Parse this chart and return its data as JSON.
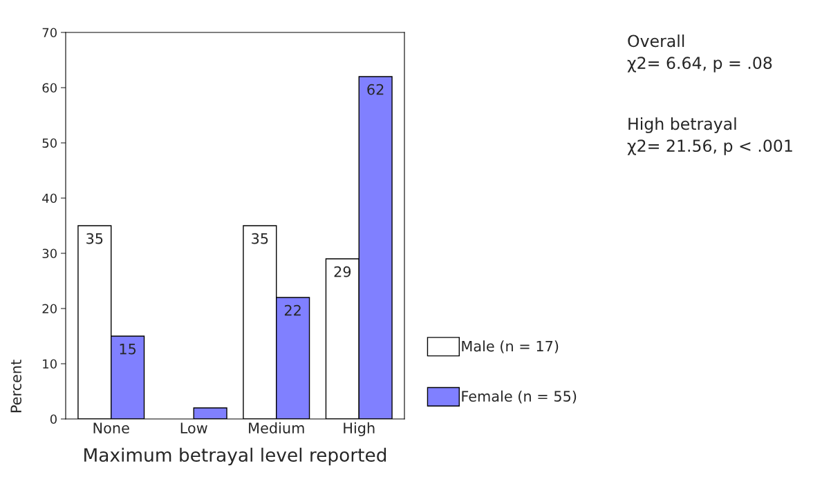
{
  "chart_data": {
    "type": "bar",
    "xlabel": "Maximum betrayal level reported",
    "ylabel": "Percent",
    "categories": [
      "None",
      "Low",
      "Medium",
      "High"
    ],
    "series": [
      {
        "name": "Male (n = 17)",
        "color": "#ffffff",
        "values": [
          35,
          null,
          35,
          29
        ],
        "value_labels": [
          "35",
          null,
          "35",
          "29"
        ]
      },
      {
        "name": "Female (n = 55)",
        "color": "#8080ff",
        "values": [
          15,
          2,
          22,
          62
        ],
        "value_labels": [
          "15",
          null,
          "22",
          "62"
        ]
      }
    ],
    "ylim": [
      0,
      70
    ],
    "yticks": [
      0,
      10,
      20,
      30,
      40,
      50,
      60,
      70
    ],
    "grid": false,
    "legend": "right",
    "annotations": [
      "Overall\nχ2= 6.64, p = .08",
      "High betrayal\nχ2= 21.56, p < .001"
    ]
  }
}
